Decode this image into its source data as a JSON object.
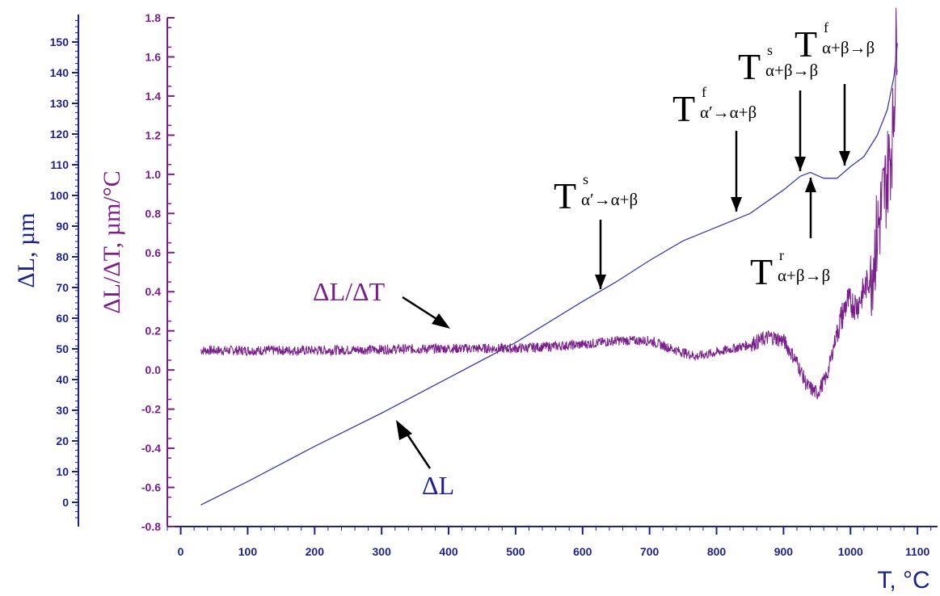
{
  "chart_data": {
    "type": "line",
    "xlabel": "T, °C",
    "xlim": [
      -20,
      1130
    ],
    "xticks": [
      0,
      100,
      200,
      300,
      400,
      500,
      600,
      700,
      800,
      900,
      1000,
      1100
    ],
    "y_left": {
      "label": "ΔL, µm",
      "lim": [
        -5,
        160
      ],
      "ticks": [
        0,
        10,
        20,
        30,
        40,
        50,
        60,
        70,
        80,
        90,
        100,
        110,
        120,
        130,
        140,
        150
      ],
      "color": "#1f1f8f"
    },
    "y_right": {
      "label": "ΔL/ΔT, µm/°C",
      "lim": [
        -0.8,
        1.8
      ],
      "ticks": [
        "-0.8",
        "-0.6",
        "-0.4",
        "-0.2",
        "0.0",
        "0.2",
        "0.4",
        "0.6",
        "0.8",
        "1.0",
        "1.2",
        "1.4",
        "1.6",
        "1.8"
      ],
      "color": "#7a1e8c"
    },
    "series": [
      {
        "name": "ΔL",
        "axis": "right",
        "color": "#3a3ab8",
        "points": [
          [
            30,
            -0.69
          ],
          [
            100,
            -0.57
          ],
          [
            200,
            -0.39
          ],
          [
            300,
            -0.22
          ],
          [
            400,
            -0.04
          ],
          [
            450,
            0.05
          ],
          [
            500,
            0.14
          ],
          [
            600,
            0.35
          ],
          [
            650,
            0.45
          ],
          [
            700,
            0.56
          ],
          [
            750,
            0.66
          ],
          [
            800,
            0.73
          ],
          [
            850,
            0.8
          ],
          [
            900,
            0.92
          ],
          [
            925,
            0.99
          ],
          [
            940,
            1.01
          ],
          [
            960,
            0.98
          ],
          [
            980,
            0.98
          ],
          [
            1000,
            1.04
          ],
          [
            1020,
            1.09
          ],
          [
            1040,
            1.2
          ],
          [
            1055,
            1.33
          ],
          [
            1065,
            1.5
          ],
          [
            1070,
            1.67
          ]
        ]
      },
      {
        "name": "ΔL/ΔT",
        "axis": "right",
        "color": "#7a1e8c",
        "points": [
          [
            30,
            0.1
          ],
          [
            200,
            0.1
          ],
          [
            400,
            0.11
          ],
          [
            500,
            0.11
          ],
          [
            600,
            0.13
          ],
          [
            650,
            0.15
          ],
          [
            700,
            0.15
          ],
          [
            740,
            0.1
          ],
          [
            770,
            0.07
          ],
          [
            800,
            0.09
          ],
          [
            850,
            0.13
          ],
          [
            880,
            0.17
          ],
          [
            900,
            0.15
          ],
          [
            920,
            0.04
          ],
          [
            935,
            -0.08
          ],
          [
            950,
            -0.12
          ],
          [
            965,
            -0.03
          ],
          [
            980,
            0.2
          ],
          [
            995,
            0.35
          ],
          [
            1010,
            0.33
          ],
          [
            1030,
            0.48
          ],
          [
            1045,
            0.8
          ],
          [
            1055,
            1.0
          ],
          [
            1063,
            1.2
          ],
          [
            1070,
            1.8
          ]
        ]
      }
    ],
    "annotations": [
      {
        "main": "T",
        "sup": "s",
        "sub": "α′→α+β"
      },
      {
        "main": "T",
        "sup": "f",
        "sub": "α′→α+β"
      },
      {
        "main": "T",
        "sup": "s",
        "sub": "α+β→β"
      },
      {
        "main": "T",
        "sup": "f",
        "sub": "α+β→β"
      },
      {
        "main": "T",
        "sup": "r",
        "sub": "α+β→β"
      },
      {
        "main": "ΔL/ΔT",
        "sup": "",
        "sub": ""
      },
      {
        "main": "ΔL",
        "sup": "",
        "sub": ""
      }
    ]
  }
}
